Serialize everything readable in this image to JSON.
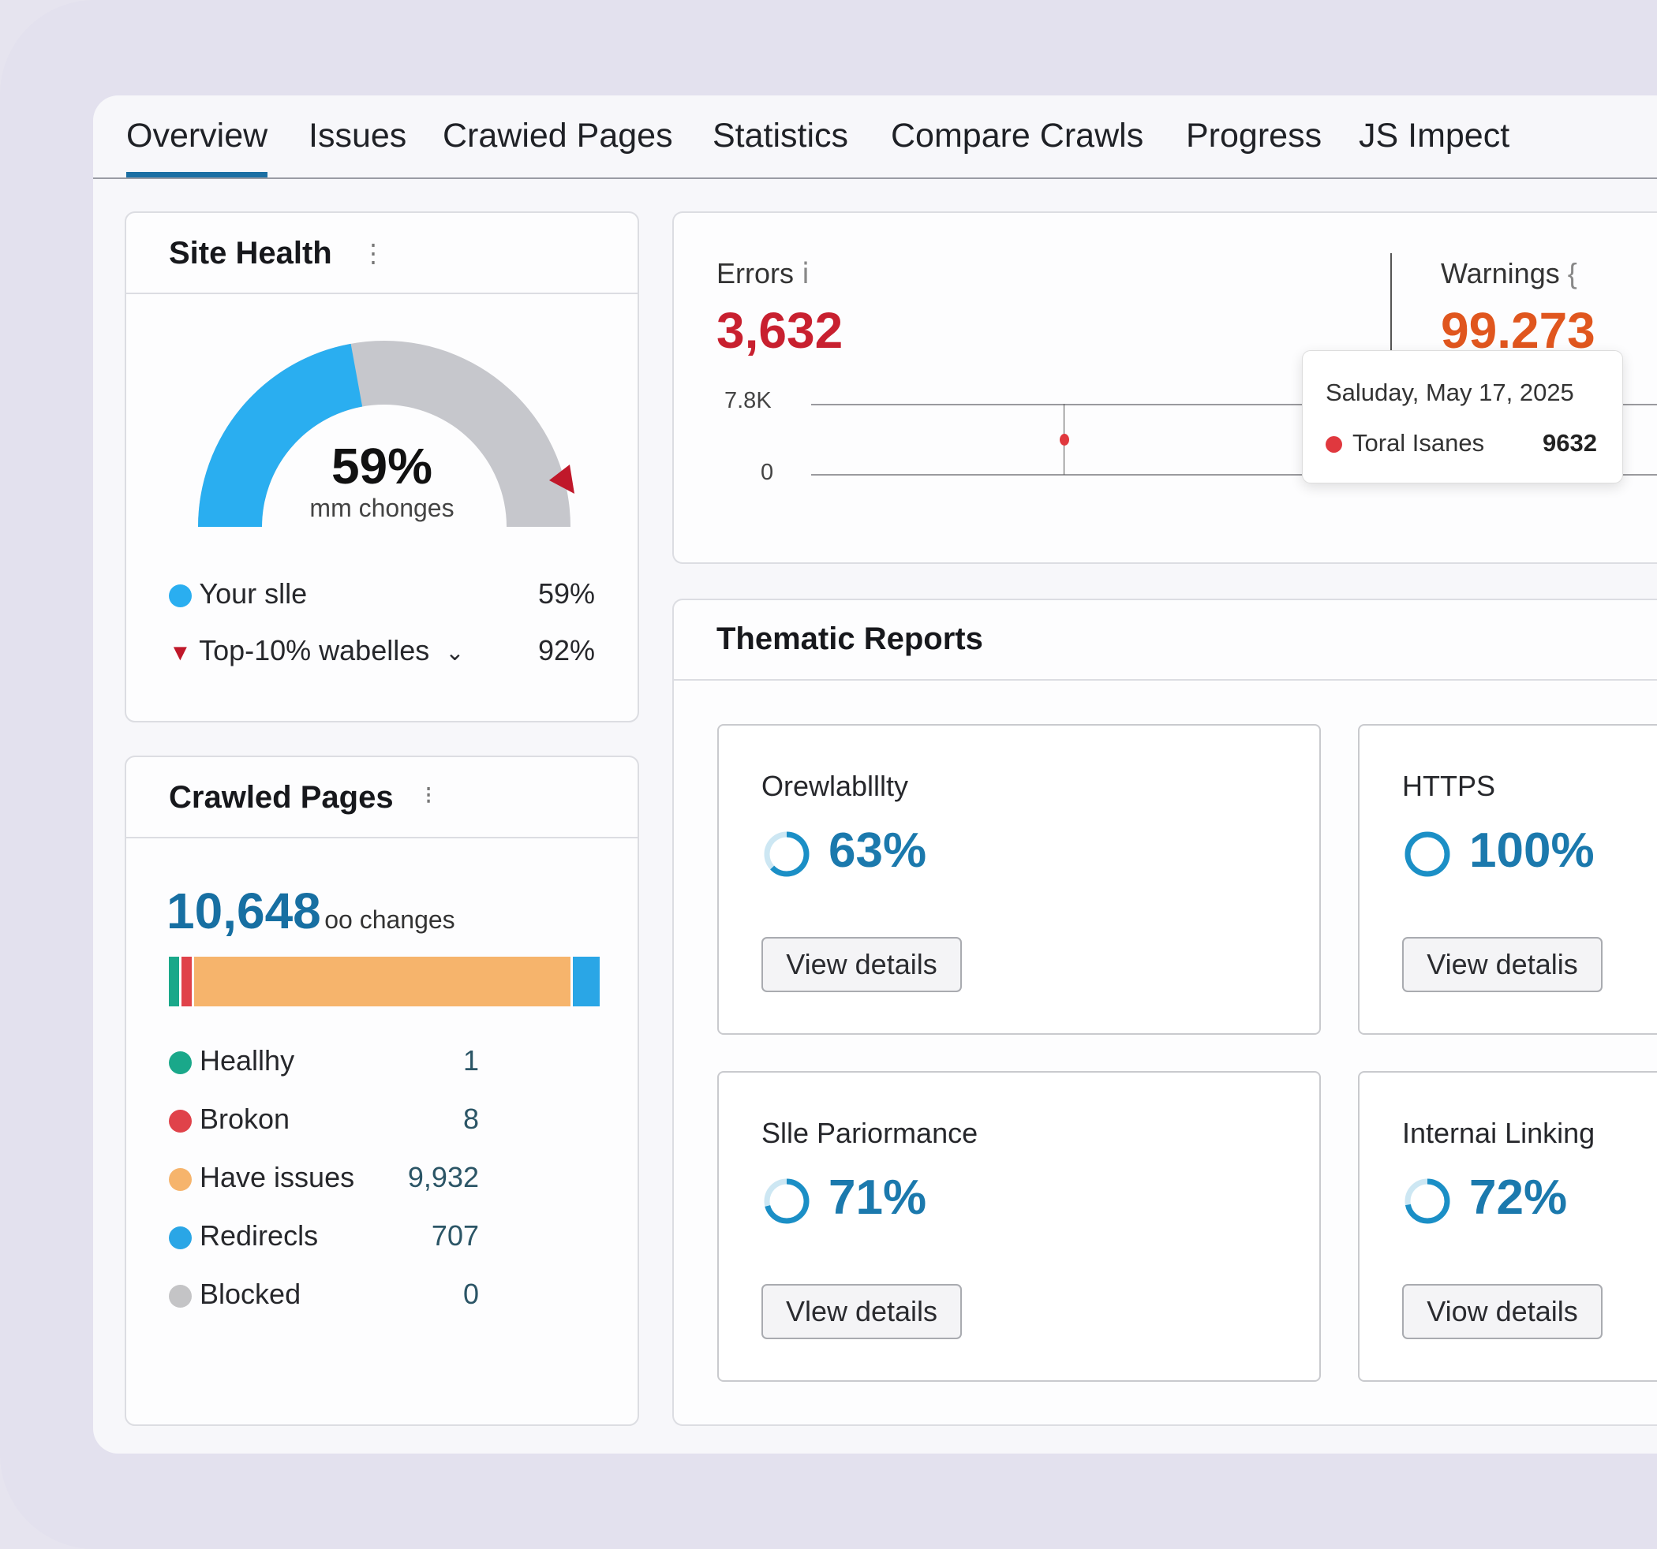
{
  "tabs": [
    "Overview",
    "Issues",
    "Crawied Pages",
    "Statistics",
    "Compare Crawls",
    "Progress",
    "JS Impect"
  ],
  "active_tab": "Overview",
  "site_health": {
    "title": "Site Health",
    "percent_label": "59%",
    "percent_value": 59,
    "sub_label": "m​m chonges",
    "legend": [
      {
        "label": "Your slle",
        "value": "59%",
        "color": "#2aaef0"
      },
      {
        "label": "Top-10% wabelles",
        "value": "92%",
        "color": "#c0182a"
      }
    ]
  },
  "errors": {
    "label": "Errors",
    "value": "3,632",
    "color": "#c8202f"
  },
  "warnings": {
    "label": "Warnings",
    "value": "99.273",
    "color": "#e0561e"
  },
  "errors_chart": {
    "y_ticks": [
      "7.8K",
      "0"
    ],
    "tooltip_date": "Saluday, May 17, 2025",
    "tooltip_series": "Toral Isanes",
    "tooltip_value": "9632"
  },
  "crawled_pages": {
    "title": "Crawled Pages",
    "total": "10,648",
    "total_suffix": "oo changes",
    "items": [
      {
        "label": "Heallhy",
        "value": "1",
        "count": 1,
        "color": "#1aa88a"
      },
      {
        "label": "Brokon",
        "value": "8",
        "count": 8,
        "color": "#e0424a"
      },
      {
        "label": "Have issues",
        "value": "9,932",
        "count": 9932,
        "color": "#f6b46c"
      },
      {
        "label": "Redirecls",
        "value": "707",
        "count": 707,
        "color": "#2aa6e6"
      },
      {
        "label": "Blocked",
        "value": "0",
        "count": 0,
        "color": "#c4c4c6"
      }
    ]
  },
  "thematic": {
    "title": "Thematic Reports",
    "reports": [
      {
        "label": "Orewlablllty",
        "value": "63%",
        "percent": 63,
        "button": "View details"
      },
      {
        "label": "HTTPS",
        "value": "100%",
        "percent": 100,
        "button": "View detalis"
      },
      {
        "label": "Slle Pariormance",
        "value": "71%",
        "percent": 71,
        "button": "Vlew details"
      },
      {
        "label": "Internai Linking",
        "value": "72%",
        "percent": 72,
        "button": "Viow details"
      }
    ]
  }
}
